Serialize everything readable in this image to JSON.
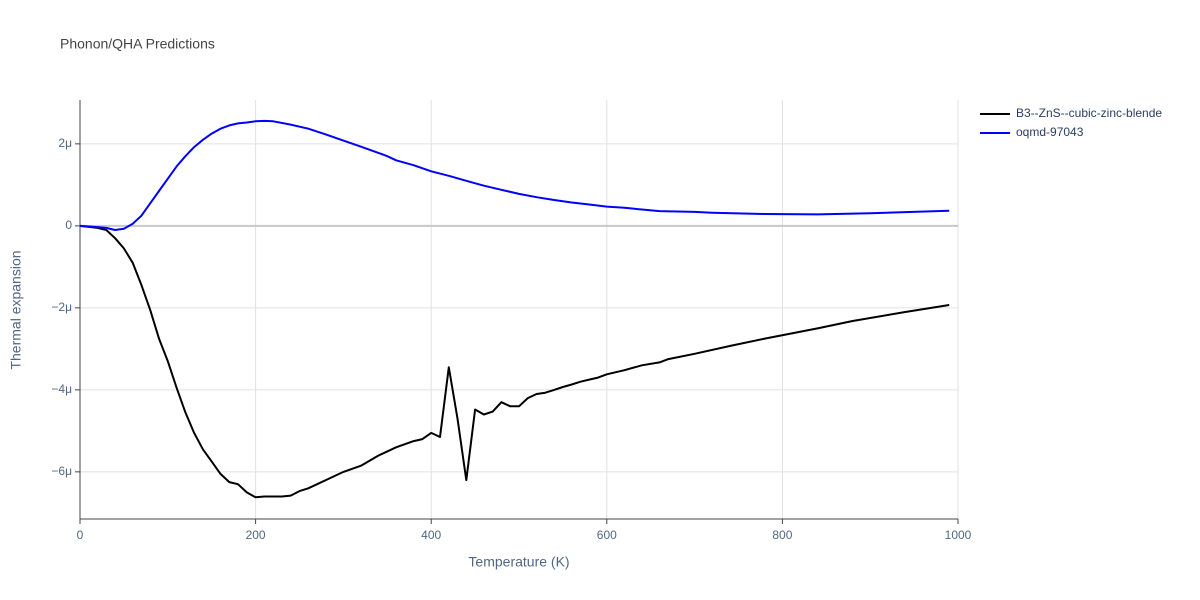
{
  "chart_data": {
    "type": "line",
    "title": "Phonon/QHA Predictions",
    "x_label": "Temperature (K)",
    "y_label": "Thermal expansion",
    "xlim": [
      0,
      1000
    ],
    "xticks": [
      0,
      200,
      400,
      600,
      800,
      1000
    ],
    "ylim": [
      -7.15e-06,
      3.07e-06
    ],
    "yticks": [
      {
        "value": -6e-06,
        "label": "−6μ"
      },
      {
        "value": -4e-06,
        "label": "−4μ"
      },
      {
        "value": -2e-06,
        "label": "−2μ"
      },
      0,
      {
        "value": 2e-06,
        "label": "2μ"
      }
    ],
    "grid": true,
    "legend": "top-right",
    "series": [
      {
        "name": "B3--ZnS--cubic-zinc-blende",
        "color": "#000000",
        "x": [
          0,
          20,
          30,
          40,
          50,
          60,
          70,
          80,
          90,
          100,
          110,
          120,
          130,
          140,
          150,
          160,
          170,
          180,
          190,
          200,
          210,
          220,
          230,
          240,
          250,
          260,
          270,
          280,
          290,
          300,
          320,
          340,
          360,
          380,
          390,
          400,
          410,
          420,
          430,
          440,
          450,
          460,
          470,
          480,
          490,
          500,
          510,
          520,
          530,
          540,
          550,
          560,
          570,
          580,
          590,
          600,
          620,
          640,
          660,
          670,
          700,
          740,
          780,
          840,
          880,
          940,
          990
        ],
        "values": [
          0,
          -5e-08,
          -1e-07,
          -3e-07,
          -5.5e-07,
          -9e-07,
          -1.45e-06,
          -2.05e-06,
          -2.75e-06,
          -3.3e-06,
          -3.95e-06,
          -4.55e-06,
          -5.05e-06,
          -5.45e-06,
          -5.75e-06,
          -6.05e-06,
          -6.25e-06,
          -6.3e-06,
          -6.5e-06,
          -6.62e-06,
          -6.6e-06,
          -6.6e-06,
          -6.6e-06,
          -6.58e-06,
          -6.47e-06,
          -6.4e-06,
          -6.3e-06,
          -6.2e-06,
          -6.1e-06,
          -6e-06,
          -5.85e-06,
          -5.6e-06,
          -5.4e-06,
          -5.25e-06,
          -5.2e-06,
          -5.05e-06,
          -5.15e-06,
          -3.45e-06,
          -4.7e-06,
          -6.2e-06,
          -4.48e-06,
          -4.6e-06,
          -4.53e-06,
          -4.3e-06,
          -4.4e-06,
          -4.4e-06,
          -4.2e-06,
          -4.1e-06,
          -4.07e-06,
          -4e-06,
          -3.93e-06,
          -3.87e-06,
          -3.8e-06,
          -3.75e-06,
          -3.7e-06,
          -3.62e-06,
          -3.52e-06,
          -3.4e-06,
          -3.33e-06,
          -3.25e-06,
          -3.12e-06,
          -2.93e-06,
          -2.75e-06,
          -2.5e-06,
          -2.32e-06,
          -2.1e-06,
          -1.93e-06
        ]
      },
      {
        "name": "oqmd-97043",
        "color": "#0000ff",
        "x": [
          0,
          20,
          30,
          40,
          50,
          60,
          70,
          80,
          90,
          100,
          110,
          120,
          130,
          140,
          150,
          160,
          170,
          180,
          190,
          200,
          210,
          220,
          240,
          260,
          280,
          300,
          320,
          340,
          350,
          360,
          380,
          400,
          420,
          440,
          460,
          480,
          500,
          520,
          540,
          560,
          580,
          600,
          620,
          640,
          660,
          700,
          720,
          780,
          840,
          900,
          990
        ],
        "values": [
          0,
          -3e-08,
          -5e-08,
          -1e-07,
          -7e-08,
          5e-08,
          2.5e-07,
          5.5e-07,
          8.5e-07,
          1.15e-06,
          1.45e-06,
          1.7e-06,
          1.92e-06,
          2.1e-06,
          2.25e-06,
          2.37e-06,
          2.45e-06,
          2.5e-06,
          2.52e-06,
          2.55e-06,
          2.56e-06,
          2.55e-06,
          2.47e-06,
          2.37e-06,
          2.23e-06,
          2.08e-06,
          1.93e-06,
          1.78e-06,
          1.7e-06,
          1.6e-06,
          1.48e-06,
          1.33e-06,
          1.22e-06,
          1.1e-06,
          9.8e-07,
          8.8e-07,
          7.8e-07,
          7e-07,
          6.3e-07,
          5.7e-07,
          5.2e-07,
          4.7e-07,
          4.4e-07,
          4e-07,
          3.6e-07,
          3.4e-07,
          3.2e-07,
          2.9e-07,
          2.8e-07,
          3.1e-07,
          3.7e-07
        ]
      }
    ]
  }
}
